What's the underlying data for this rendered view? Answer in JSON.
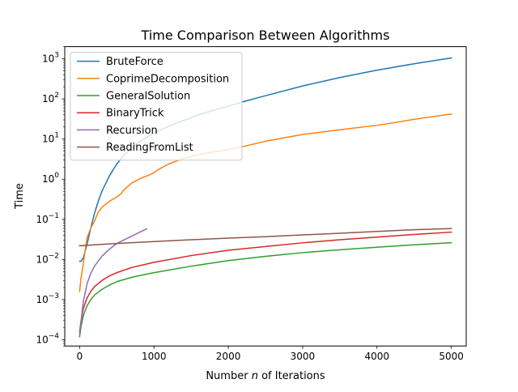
{
  "chart_data": {
    "type": "line",
    "title": "Time Comparison Between Algorithms",
    "xlabel_parts": [
      "Number ",
      "n",
      " of Iterations"
    ],
    "ylabel": "Time",
    "x_scale": "linear",
    "y_scale": "log",
    "xlim": [
      -200,
      5200
    ],
    "ylim": [
      7e-05,
      2000
    ],
    "x_ticks": [
      0,
      1000,
      2000,
      3000,
      4000,
      5000
    ],
    "y_ticks": [
      {
        "value": 0.0001,
        "base": "10",
        "exp": "−4"
      },
      {
        "value": 0.001,
        "base": "10",
        "exp": "−3"
      },
      {
        "value": 0.01,
        "base": "10",
        "exp": "−2"
      },
      {
        "value": 0.1,
        "base": "10",
        "exp": "−1"
      },
      {
        "value": 1,
        "base": "10",
        "exp": "0"
      },
      {
        "value": 10,
        "base": "10",
        "exp": "1"
      },
      {
        "value": 100,
        "base": "10",
        "exp": "2"
      },
      {
        "value": 1000,
        "base": "10",
        "exp": "3"
      }
    ],
    "grid": false,
    "legend_position": "upper-left",
    "series": [
      {
        "name": "BruteForce",
        "color": "#1f77b4",
        "points": [
          [
            0,
            0.009
          ],
          [
            20,
            0.009
          ],
          [
            50,
            0.011
          ],
          [
            100,
            0.024
          ],
          [
            150,
            0.06
          ],
          [
            200,
            0.14
          ],
          [
            250,
            0.28
          ],
          [
            300,
            0.5
          ],
          [
            400,
            1.2
          ],
          [
            500,
            2.4
          ],
          [
            600,
            4.0
          ],
          [
            700,
            6.0
          ],
          [
            800,
            8.5
          ],
          [
            900,
            11
          ],
          [
            1000,
            14
          ],
          [
            1200,
            21
          ],
          [
            1400,
            29
          ],
          [
            1600,
            40
          ],
          [
            1800,
            52
          ],
          [
            2000,
            66
          ],
          [
            2200,
            85
          ],
          [
            2500,
            120
          ],
          [
            3000,
            210
          ],
          [
            3500,
            340
          ],
          [
            4000,
            520
          ],
          [
            4500,
            750
          ],
          [
            5000,
            1050
          ]
        ]
      },
      {
        "name": "CoprimeDecomposition",
        "color": "#ff7f0e",
        "points": [
          [
            0,
            0.0016
          ],
          [
            20,
            0.0035
          ],
          [
            50,
            0.008
          ],
          [
            80,
            0.02
          ],
          [
            100,
            0.035
          ],
          [
            150,
            0.06
          ],
          [
            200,
            0.09
          ],
          [
            250,
            0.15
          ],
          [
            300,
            0.2
          ],
          [
            400,
            0.28
          ],
          [
            500,
            0.36
          ],
          [
            550,
            0.42
          ],
          [
            600,
            0.55
          ],
          [
            700,
            0.8
          ],
          [
            800,
            1.0
          ],
          [
            900,
            1.2
          ],
          [
            950,
            1.3
          ],
          [
            1000,
            1.45
          ],
          [
            1050,
            1.7
          ],
          [
            1200,
            2.4
          ],
          [
            1400,
            3.3
          ],
          [
            1600,
            4.1
          ],
          [
            1800,
            4.8
          ],
          [
            2000,
            5.4
          ],
          [
            2200,
            6.5
          ],
          [
            2500,
            8.8
          ],
          [
            3000,
            13
          ],
          [
            3500,
            17
          ],
          [
            4000,
            22
          ],
          [
            4200,
            25
          ],
          [
            4500,
            31
          ],
          [
            5000,
            42
          ]
        ]
      },
      {
        "name": "GeneralSolution",
        "color": "#2ca02c",
        "points": [
          [
            0,
            0.00012
          ],
          [
            20,
            0.00022
          ],
          [
            50,
            0.0004
          ],
          [
            100,
            0.0007
          ],
          [
            150,
            0.001
          ],
          [
            200,
            0.0013
          ],
          [
            300,
            0.0018
          ],
          [
            400,
            0.0023
          ],
          [
            500,
            0.0028
          ],
          [
            700,
            0.0036
          ],
          [
            1000,
            0.0047
          ],
          [
            1500,
            0.0068
          ],
          [
            2000,
            0.0094
          ],
          [
            2500,
            0.012
          ],
          [
            3000,
            0.0148
          ],
          [
            3500,
            0.0175
          ],
          [
            4000,
            0.0202
          ],
          [
            4500,
            0.0232
          ],
          [
            5000,
            0.0262
          ]
        ]
      },
      {
        "name": "BinaryTrick",
        "color": "#d62728",
        "points": [
          [
            0,
            0.00016
          ],
          [
            20,
            0.0003
          ],
          [
            50,
            0.0006
          ],
          [
            100,
            0.0011
          ],
          [
            150,
            0.0016
          ],
          [
            200,
            0.0021
          ],
          [
            300,
            0.003
          ],
          [
            400,
            0.0039
          ],
          [
            500,
            0.0047
          ],
          [
            700,
            0.0063
          ],
          [
            1000,
            0.0085
          ],
          [
            1500,
            0.0125
          ],
          [
            2000,
            0.017
          ],
          [
            2500,
            0.021
          ],
          [
            3000,
            0.026
          ],
          [
            3500,
            0.031
          ],
          [
            4000,
            0.036
          ],
          [
            4500,
            0.042
          ],
          [
            5000,
            0.048
          ]
        ]
      },
      {
        "name": "Recursion",
        "color": "#9467bd",
        "points": [
          [
            0,
            0.00014
          ],
          [
            20,
            0.0003
          ],
          [
            50,
            0.0009
          ],
          [
            100,
            0.0025
          ],
          [
            150,
            0.0045
          ],
          [
            200,
            0.0068
          ],
          [
            300,
            0.012
          ],
          [
            400,
            0.018
          ],
          [
            500,
            0.025
          ],
          [
            600,
            0.031
          ],
          [
            700,
            0.038
          ],
          [
            800,
            0.047
          ],
          [
            900,
            0.058
          ]
        ]
      },
      {
        "name": "ReadingFromList",
        "color": "#8c564b",
        "points": [
          [
            0,
            0.022
          ],
          [
            500,
            0.025
          ],
          [
            1000,
            0.028
          ],
          [
            1500,
            0.031
          ],
          [
            2000,
            0.034
          ],
          [
            2500,
            0.037
          ],
          [
            3000,
            0.041
          ],
          [
            3500,
            0.045
          ],
          [
            4000,
            0.05
          ],
          [
            4500,
            0.055
          ],
          [
            5000,
            0.059
          ]
        ]
      }
    ]
  }
}
